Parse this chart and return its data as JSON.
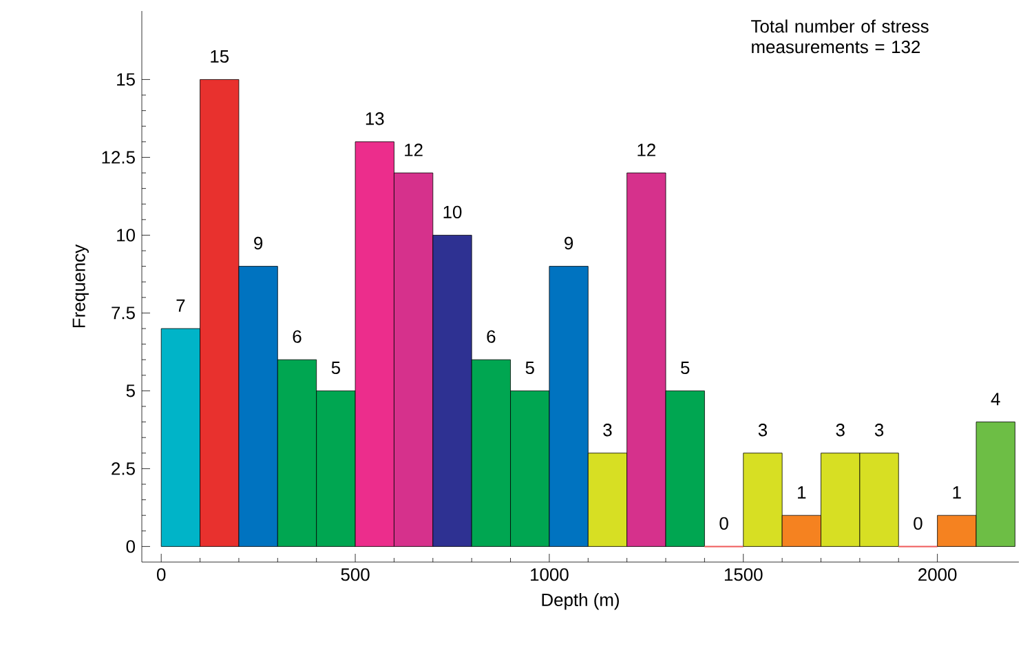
{
  "chart_data": {
    "type": "histogram",
    "xlabel": "Depth (m)",
    "ylabel": "Frequency",
    "bins": [
      0,
      100,
      200,
      300,
      400,
      500,
      600,
      700,
      800,
      900,
      1000,
      1100,
      1200,
      1300,
      1400,
      1500,
      1600,
      1700,
      1800,
      1900,
      2000,
      2100,
      2200
    ],
    "values": [
      7,
      15,
      9,
      6,
      5,
      13,
      12,
      10,
      6,
      5,
      9,
      3,
      12,
      5,
      0,
      3,
      1,
      3,
      3,
      0,
      1,
      4
    ],
    "colors": [
      "#00b4c8",
      "#e8312e",
      "#0073c0",
      "#00a651",
      "#00a651",
      "#ec2d8c",
      "#d6318c",
      "#2e3192",
      "#00a651",
      "#00a651",
      "#0073c0",
      "#d7df23",
      "#d6318c",
      "#00a651",
      "#f05a5a",
      "#d7df23",
      "#f58220",
      "#d7df23",
      "#d7df23",
      "#f05a5a",
      "#f58220",
      "#6dbe45"
    ],
    "xlim": [
      -50,
      2210
    ],
    "ylim": [
      -0.5,
      17.2
    ],
    "xticks": [
      0,
      500,
      1000,
      1500,
      2000
    ],
    "yticks": [
      0,
      2.5,
      5,
      7.5,
      10,
      12.5,
      15
    ],
    "data_labels": true,
    "annotations": [
      "Total number of stress measurements = 132"
    ]
  }
}
